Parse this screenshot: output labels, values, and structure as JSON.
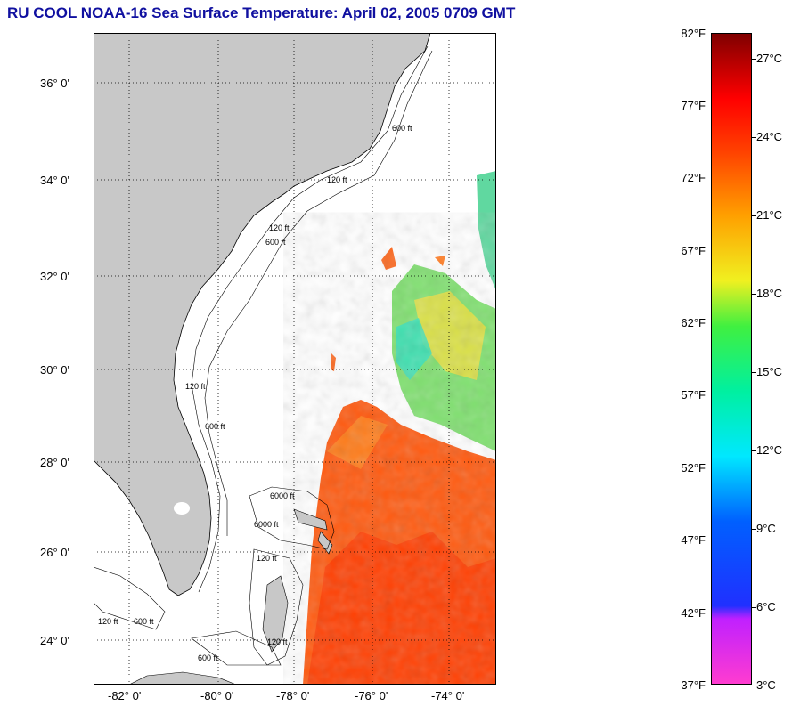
{
  "title": "RU COOL  NOAA-16  Sea Surface Temperature:  April 02, 2005 0709 GMT",
  "map": {
    "lat_labels": [
      "36° 0'",
      "34° 0'",
      "32° 0'",
      "30° 0'",
      "28° 0'",
      "26° 0'",
      "24° 0'"
    ],
    "lon_labels": [
      "-82° 0'",
      "-80° 0'",
      "-78° 0'",
      "-76° 0'",
      "-74° 0'"
    ],
    "contour_labels": [
      "600 ft",
      "120 ft",
      "120 ft",
      "600 ft",
      "120 ft",
      "600 ft",
      "6000 ft",
      "6000 ft",
      "120 ft",
      "120 ft",
      "600 ft",
      "120 ft",
      "600 ft"
    ],
    "colors": {
      "land": "#c8c8c8",
      "ocean_no_data": "#ffffff",
      "grid": "#000000"
    }
  },
  "colorbar": {
    "fahrenheit_labels": [
      "82°F",
      "77°F",
      "72°F",
      "67°F",
      "62°F",
      "57°F",
      "52°F",
      "47°F",
      "42°F",
      "37°F"
    ],
    "celsius_labels": [
      "27°C",
      "24°C",
      "21°C",
      "18°C",
      "15°C",
      "12°C",
      "9°C",
      "6°C",
      "3°C"
    ],
    "range_f": [
      37,
      82
    ],
    "range_c": [
      3,
      27.8
    ]
  }
}
